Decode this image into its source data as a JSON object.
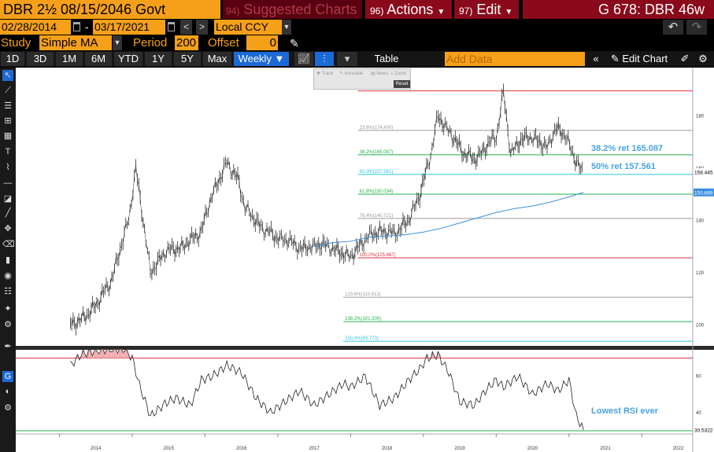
{
  "header": {
    "ticker": "DBR 2½ 08/15/2046 Govt",
    "suggested_num": "94)",
    "suggested_label": "Suggested Charts",
    "actions_num": "96)",
    "actions_label": "Actions",
    "edit_num": "97)",
    "edit_label": "Edit",
    "window_title": "G 678: DBR 46w"
  },
  "dates": {
    "start": "02/28/2014",
    "separator": "-",
    "end": "03/17/2021",
    "prev": "<",
    "next": ">",
    "currency": "Local CCY"
  },
  "study": {
    "label": "Study",
    "type": "Simple MA",
    "period_label": "Period",
    "period": "200",
    "offset_label": "Offset",
    "offset": "0"
  },
  "range": {
    "buttons": [
      "1D",
      "3D",
      "1M",
      "6M",
      "YTD",
      "1Y",
      "5Y",
      "Max"
    ],
    "frequency": "Weekly ▼",
    "table_label": "Table",
    "add_data_placeholder": "Add Data",
    "edit_chart_label": "Edit Chart"
  },
  "chart_tools": {
    "track": "Track",
    "annotate": "Annotate",
    "news": "News",
    "zoom": "Zoom",
    "reset": "Reset"
  },
  "chart_data": {
    "type": "line",
    "price_axis": {
      "ylim": [
        92,
        190
      ],
      "ticks": [
        100,
        120,
        140,
        160,
        180
      ]
    },
    "rsi_axis": {
      "ylim": [
        30,
        75
      ],
      "ticks": [
        40,
        60
      ]
    },
    "x_axis": {
      "labels": [
        "2014",
        "2015",
        "2016",
        "2017",
        "2018",
        "2019",
        "2020",
        "2021",
        "2022"
      ]
    },
    "price_last": "158.445",
    "ma_last": "150.689",
    "rsi_last": "30.5322",
    "fib_levels": [
      {
        "label": "0.0%",
        "value": 189.5,
        "color": "#d9363e"
      },
      {
        "label": "23.6%(174.400)",
        "value": 174.4,
        "color": "#9a9a9a"
      },
      {
        "label": "38.2%(165.087)",
        "value": 165.087,
        "color": "#22b14c"
      },
      {
        "label": "50.0%(157.561)",
        "value": 157.561,
        "color": "#29c6e0"
      },
      {
        "label": "61.8%(150.034)",
        "value": 150.034,
        "color": "#22b14c"
      },
      {
        "label": "76.4%(140.721)",
        "value": 140.721,
        "color": "#9a9a9a"
      },
      {
        "label": "100.0%(125.667)",
        "value": 125.667,
        "color": "#d9363e"
      },
      {
        "label": "123.6%(110.613)",
        "value": 110.613,
        "color": "#9a9a9a"
      },
      {
        "label": "138.2%(101.300)",
        "value": 101.3,
        "color": "#22b14c"
      },
      {
        "label": "150.0%(93.773)",
        "value": 93.773,
        "color": "#29c6e0"
      }
    ],
    "annotations": {
      "ret382": "38.2% ret 165.087",
      "ret50": "50% ret 157.561",
      "rsi_note": "Lowest RSI ever"
    },
    "rsi_levels": [
      70,
      30
    ],
    "price_series": {
      "x": [
        2014.15,
        2014.4,
        2014.7,
        2014.95,
        2015.05,
        2015.25,
        2015.45,
        2015.7,
        2015.95,
        2016.1,
        2016.3,
        2016.45,
        2016.55,
        2016.75,
        2016.95,
        2017.15,
        2017.35,
        2017.6,
        2017.85,
        2018.0,
        2018.2,
        2018.4,
        2018.6,
        2018.8,
        2018.95,
        2019.1,
        2019.2,
        2019.4,
        2019.55,
        2019.7,
        2019.85,
        2020.0,
        2020.1,
        2020.2,
        2020.3,
        2020.45,
        2020.6,
        2020.7,
        2020.82,
        2020.95,
        2021.05,
        2021.2
      ],
      "y": [
        100,
        104,
        116,
        140,
        160,
        120,
        128,
        130,
        136,
        150,
        162,
        156,
        145,
        138,
        134,
        132,
        129,
        131,
        128,
        126,
        133,
        136,
        135,
        140,
        150,
        165,
        180,
        172,
        166,
        163,
        168,
        172,
        189,
        165,
        170,
        172,
        170,
        168,
        175,
        173,
        165,
        158
      ]
    },
    "ma_series": {
      "x": [
        2017.5,
        2017.75,
        2018.0,
        2018.25,
        2018.5,
        2018.75,
        2019.0,
        2019.25,
        2019.5,
        2019.75,
        2020.0,
        2020.25,
        2020.5,
        2020.75,
        2021.0,
        2021.2
      ],
      "y": [
        130,
        131.5,
        132,
        133.5,
        134,
        134.5,
        135.5,
        137,
        139,
        141,
        143,
        144.5,
        145.5,
        147,
        149,
        150.7
      ]
    },
    "rsi_series": {
      "x": [
        2014.15,
        2014.3,
        2014.5,
        2014.7,
        2014.9,
        2015.0,
        2015.1,
        2015.25,
        2015.45,
        2015.6,
        2015.8,
        2015.95,
        2016.1,
        2016.3,
        2016.5,
        2016.7,
        2016.9,
        2017.1,
        2017.3,
        2017.5,
        2017.7,
        2017.9,
        2018.0,
        2018.2,
        2018.4,
        2018.6,
        2018.8,
        2018.95,
        2019.05,
        2019.2,
        2019.35,
        2019.5,
        2019.7,
        2019.85,
        2020.0,
        2020.1,
        2020.3,
        2020.5,
        2020.7,
        2020.85,
        2021.0,
        2021.1,
        2021.2
      ],
      "y": [
        66,
        72,
        74,
        75,
        75,
        70,
        55,
        38,
        45,
        48,
        44,
        58,
        60,
        66,
        62,
        48,
        40,
        46,
        52,
        44,
        50,
        56,
        54,
        60,
        44,
        48,
        58,
        64,
        70,
        72,
        62,
        46,
        44,
        52,
        58,
        54,
        60,
        50,
        56,
        52,
        58,
        38,
        30.5
      ]
    }
  }
}
